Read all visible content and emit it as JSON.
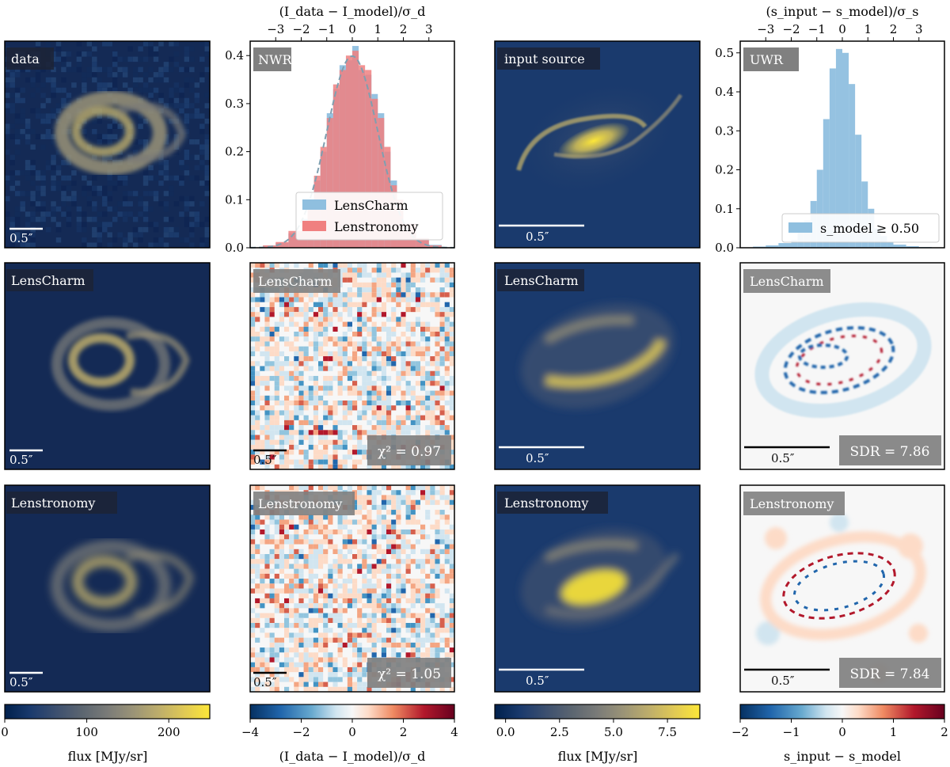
{
  "colors": {
    "cividis_stops": [
      "#00204c",
      "#1a3a6d",
      "#3c4f6f",
      "#5b6570",
      "#7a7b78",
      "#9a9377",
      "#bdad6b",
      "#e0c955",
      "#fde738"
    ],
    "rdbu_stops": [
      "#2166ac",
      "#67a9cf",
      "#d1e5f0",
      "#f7f7f7",
      "#fddbc7",
      "#ef8a62",
      "#b2182b",
      "#67001f"
    ],
    "lenscharm": "#8fbfdf",
    "lenstronomy": "#f08080",
    "gauss": "#7f9fb0",
    "label_bg_dark": "#1c2336",
    "label_bg_gray": "#808080"
  },
  "panels": {
    "r1c1": {
      "label": "data",
      "scale": "0.5″"
    },
    "r2c1": {
      "label": "LensCharm",
      "scale": "0.5″"
    },
    "r3c1": {
      "label": "Lenstronomy",
      "scale": "0.5″"
    },
    "r2c2": {
      "label": "LensCharm",
      "scale": "0.5″",
      "stat": "χ² = 0.97"
    },
    "r3c2": {
      "label": "Lenstronomy",
      "scale": "0.5″",
      "stat": "χ² = 1.05"
    },
    "r1c3": {
      "label": "input source",
      "scale": "0.5″"
    },
    "r2c3": {
      "label": "LensCharm",
      "scale": "0.5″"
    },
    "r3c3": {
      "label": "Lenstronomy",
      "scale": "0.5″"
    },
    "r2c4": {
      "label": "LensCharm",
      "scale": "0.5″",
      "stat": "SDR = 7.86"
    },
    "r3c4": {
      "label": "Lenstronomy",
      "scale": "0.5″",
      "stat": "SDR = 7.84"
    }
  },
  "chart_data": [
    {
      "type": "bar",
      "name": "NWR histogram",
      "label": "NWR",
      "top_axis_label": "(I_data − I_model)/σ_d",
      "top_ticks": [
        "−3",
        "−2",
        "−1",
        "0",
        "1",
        "2",
        "3"
      ],
      "top_tick_values": [
        -3,
        -2,
        -1,
        0,
        1,
        2,
        3
      ],
      "xlim": [
        -4,
        4
      ],
      "ylim": [
        0,
        0.43
      ],
      "yticks": [
        "0.0",
        "0.1",
        "0.2",
        "0.3",
        "0.4"
      ],
      "ytick_values": [
        0,
        0.1,
        0.2,
        0.3,
        0.4
      ],
      "bin_edges": [
        -4.0,
        -3.5,
        -3.0,
        -2.5,
        -2.0,
        -1.75,
        -1.5,
        -1.25,
        -1.0,
        -0.75,
        -0.5,
        -0.25,
        0.0,
        0.25,
        0.5,
        0.75,
        1.0,
        1.25,
        1.5,
        1.75,
        2.0,
        2.5,
        3.0,
        3.5,
        4.0
      ],
      "series": [
        {
          "name": "LensCharm",
          "values": [
            0.001,
            0.004,
            0.01,
            0.03,
            0.06,
            0.09,
            0.14,
            0.2,
            0.28,
            0.33,
            0.38,
            0.39,
            0.42,
            0.37,
            0.36,
            0.32,
            0.28,
            0.2,
            0.14,
            0.09,
            0.05,
            0.02,
            0.006,
            0.001
          ]
        },
        {
          "name": "Lenstronomy",
          "values": [
            0.001,
            0.005,
            0.012,
            0.035,
            0.055,
            0.1,
            0.15,
            0.21,
            0.27,
            0.34,
            0.37,
            0.4,
            0.41,
            0.38,
            0.37,
            0.31,
            0.27,
            0.21,
            0.13,
            0.1,
            0.05,
            0.02,
            0.005,
            0.001
          ]
        }
      ],
      "gaussian_overlay": {
        "mean": 0,
        "sigma": 1
      },
      "legend": [
        "LensCharm",
        "Lenstronomy"
      ],
      "legend_position": "lower-right"
    },
    {
      "type": "bar",
      "name": "UWR histogram",
      "label": "UWR",
      "top_axis_label": "(s_input − s_model)/σ_s",
      "top_ticks": [
        "−3",
        "−2",
        "−1",
        "0",
        "1",
        "2",
        "3"
      ],
      "top_tick_values": [
        -3,
        -2,
        -1,
        0,
        1,
        2,
        3
      ],
      "xlim": [
        -4,
        4
      ],
      "ylim": [
        0,
        0.53
      ],
      "yticks": [
        "0.0",
        "0.1",
        "0.2",
        "0.3",
        "0.4",
        "0.5"
      ],
      "ytick_values": [
        0,
        0.1,
        0.2,
        0.3,
        0.4,
        0.5
      ],
      "bin_edges": [
        -4.0,
        -3.5,
        -3.0,
        -2.5,
        -2.0,
        -1.75,
        -1.5,
        -1.25,
        -1.0,
        -0.75,
        -0.5,
        -0.25,
        0.0,
        0.25,
        0.5,
        0.75,
        1.0,
        1.25,
        1.5,
        1.75,
        2.0,
        2.5,
        3.0,
        3.5,
        4.0
      ],
      "series": [
        {
          "name": "s_model ≥ 0.50",
          "values": [
            0.001,
            0.003,
            0.006,
            0.012,
            0.02,
            0.04,
            0.07,
            0.12,
            0.2,
            0.33,
            0.46,
            0.51,
            0.5,
            0.42,
            0.29,
            0.17,
            0.1,
            0.05,
            0.03,
            0.015,
            0.008,
            0.004,
            0.002,
            0.001
          ]
        }
      ],
      "legend": [
        "s_model ≥ 0.50"
      ],
      "legend_position": "lower-right"
    },
    {
      "type": "heatmap",
      "name": "colorbar flux data",
      "colormap": "cividis",
      "range": [
        0,
        250
      ],
      "ticks": [
        "0",
        "100",
        "200"
      ],
      "tick_values": [
        0,
        100,
        200
      ],
      "label": "flux [MJy/sr]"
    },
    {
      "type": "heatmap",
      "name": "colorbar normalized residual",
      "colormap": "RdBu_r",
      "range": [
        -4,
        4
      ],
      "ticks": [
        "−4",
        "−2",
        "0",
        "2",
        "4"
      ],
      "tick_values": [
        -4,
        -2,
        0,
        2,
        4
      ],
      "label": "(I_data − I_model)/σ_d"
    },
    {
      "type": "heatmap",
      "name": "colorbar flux source",
      "colormap": "cividis",
      "range": [
        -0.5,
        9
      ],
      "ticks": [
        "0.0",
        "2.5",
        "5.0",
        "7.5"
      ],
      "tick_values": [
        0,
        2.5,
        5,
        7.5
      ],
      "label": "flux [MJy/sr]"
    },
    {
      "type": "heatmap",
      "name": "colorbar source residual",
      "colormap": "RdBu_r",
      "range": [
        -2,
        2
      ],
      "ticks": [
        "−2",
        "−1",
        "0",
        "1",
        "2"
      ],
      "tick_values": [
        -2,
        -1,
        0,
        1,
        2
      ],
      "label": "s_input − s_model"
    }
  ]
}
